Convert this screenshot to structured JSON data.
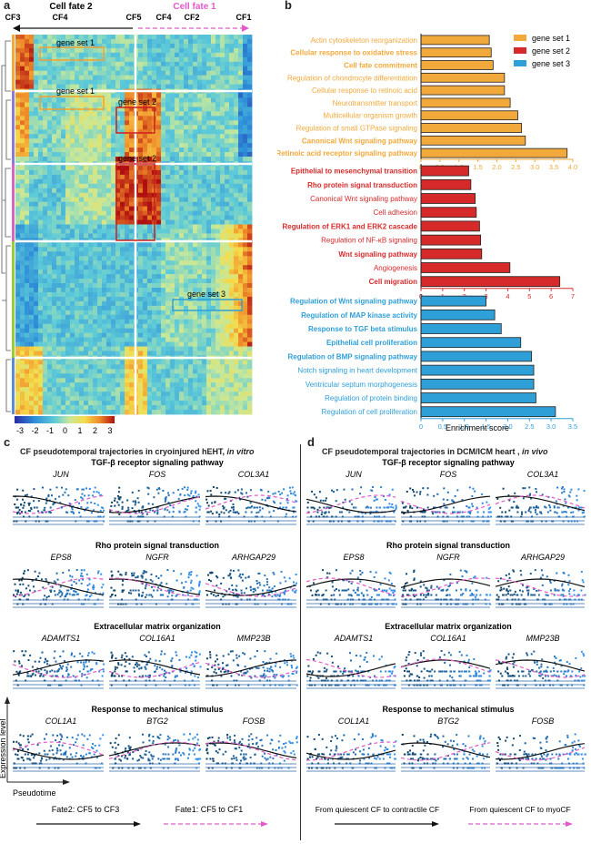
{
  "panel_a": {
    "letter": "a",
    "fate2_label": "Cell fate 2",
    "fate1_label": "Cell fate 1",
    "cf_labels": [
      "CF3",
      "CF4",
      "CF5",
      "CF4",
      "CF2",
      "CF1"
    ],
    "gene_set_labels": [
      "gene set 1",
      "gene set 1",
      "gene set 2",
      "gene set 2",
      "gene set 3"
    ],
    "colorbar": {
      "ticks": [
        "-3",
        "-2",
        "-1",
        "0",
        "1",
        "2",
        "3"
      ],
      "range": [
        -3,
        3
      ]
    }
  },
  "panel_b": {
    "letter": "b",
    "xlabel": "Enrichment score",
    "legend": [
      "gene set 1",
      "gene set 2",
      "gene set 3"
    ],
    "colors": {
      "set1": "#f2a93b",
      "set2": "#d62a2a",
      "set3": "#2f9fd8"
    }
  },
  "panel_c": {
    "letter": "c",
    "title_prefix": "CF pseudotemporal trajectories in cryoinjured hEHT, ",
    "title_suffix": "in vitro",
    "sections": [
      {
        "title": "TGF-β receptor signaling pathway",
        "genes": [
          "JUN",
          "FOS",
          "COL3A1"
        ]
      },
      {
        "title": "Rho protein signal transduction",
        "genes": [
          "EPS8",
          "NGFR",
          "ARHGAP29"
        ]
      },
      {
        "title": "Extracellular matrix organization",
        "genes": [
          "ADAMTS1",
          "COL16A1",
          "MMP23B"
        ]
      },
      {
        "title": "Response to mechanical stimulus",
        "genes": [
          "COL1A1",
          "BTG2",
          "FOSB"
        ]
      }
    ],
    "ylabel": "Expression level",
    "xlabel": "Pseudotime",
    "legend_solid": "Fate2: CF5 to CF3",
    "legend_dashed": "Fate1: CF5 to CF1"
  },
  "panel_d": {
    "letter": "d",
    "title_prefix": "CF pseudotemporal trajectories in DCM/ICM heart , ",
    "title_suffix": "in vivo",
    "sections": [
      {
        "title": "TGF-β receptor signaling pathway",
        "genes": [
          "JUN",
          "FOS",
          "COL3A1"
        ]
      },
      {
        "title": "Rho protein signal transduction",
        "genes": [
          "EPS8",
          "NGFR",
          "ARHGAP29"
        ]
      },
      {
        "title": "Extracellular matrix organization",
        "genes": [
          "ADAMTS1",
          "COL16A1",
          "MMP23B"
        ]
      },
      {
        "title": "Response to mechanical stimulus",
        "genes": [
          "COL1A1",
          "BTG2",
          "FOSB"
        ]
      }
    ],
    "legend_solid": "From quiescent CF to contractile CF",
    "legend_dashed": "From quiescent CF to myoCF"
  },
  "chart_data": [
    {
      "type": "bar",
      "orientation": "horizontal",
      "name": "gene set 1",
      "categories": [
        "Actin cytoskeleton reorganization",
        "Cellular response to oxidative stress",
        "Cell fate commitment",
        "Regulation of chondrocyte differentiation",
        "Cellular response to retinoic acid",
        "Neurotransmitter transport",
        "Multicellular organism growth",
        "Regulation of small GTPase signaling",
        "Canonical Wnt signaling pathway",
        "Retinoic acid receptor signaling pathway"
      ],
      "bold": [
        false,
        true,
        true,
        false,
        false,
        false,
        false,
        false,
        true,
        true
      ],
      "values": [
        1.8,
        1.85,
        1.9,
        2.2,
        2.2,
        2.35,
        2.55,
        2.65,
        2.75,
        3.85
      ],
      "xlim": [
        0,
        4
      ],
      "ticks": [
        "0",
        "0.5",
        "1.0",
        "1.5",
        "2.0",
        "2.5",
        "3.0",
        "3.5",
        "4.0"
      ]
    },
    {
      "type": "bar",
      "orientation": "horizontal",
      "name": "gene set 2",
      "categories": [
        "Epithelial to mesenchymal transition",
        "Rho protein signal transduction",
        "Canonical Wnt signaling pathway",
        "Cell adhesion",
        "Regulation of ERK1 and ERK2 cascade",
        "Regulation of NF-κB signaling",
        "Wnt signaling pathway",
        "Angiogenesis",
        "Cell migration"
      ],
      "bold": [
        true,
        true,
        false,
        false,
        true,
        false,
        true,
        false,
        true
      ],
      "values": [
        2.2,
        2.3,
        2.5,
        2.55,
        2.7,
        2.75,
        2.8,
        4.1,
        6.4
      ],
      "xlim": [
        0,
        7
      ],
      "ticks": [
        "0",
        "1",
        "2",
        "3",
        "4",
        "5",
        "6",
        "7"
      ]
    },
    {
      "type": "bar",
      "orientation": "horizontal",
      "name": "gene set 3",
      "categories": [
        "Regulation of Wnt signaling pathway",
        "Regulation of MAP kinase activity",
        "Response to TGF beta stimulus",
        "Epithelial cell proliferation",
        "Regulation of BMP signaling pathway",
        "Notch signaling in heart development",
        "Ventricular septum morphogenesis",
        "Regulation of protein binding",
        "Regulation of cell proliferation"
      ],
      "bold": [
        true,
        true,
        true,
        true,
        true,
        false,
        false,
        false,
        false
      ],
      "values": [
        1.5,
        1.7,
        1.85,
        2.3,
        2.55,
        2.6,
        2.6,
        2.65,
        3.1
      ],
      "xlim": [
        0,
        3.5
      ],
      "ticks": [
        "0",
        "0.5",
        "1.0",
        "1.5",
        "2.0",
        "2.5",
        "3.0",
        "3.5"
      ],
      "xlabel": "Enrichment score"
    }
  ]
}
